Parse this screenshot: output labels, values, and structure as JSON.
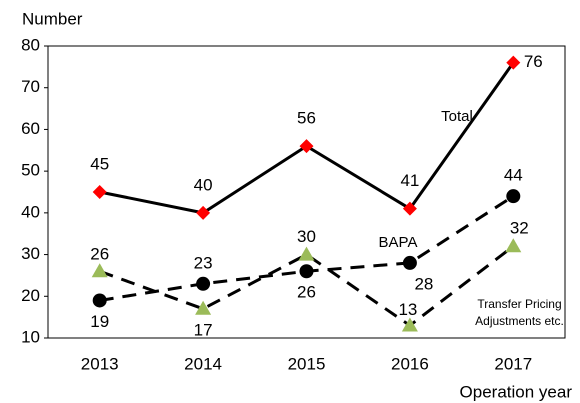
{
  "chart_data": {
    "type": "line",
    "y_label": "Number",
    "x_label": "Operation year",
    "categories": [
      "2013",
      "2014",
      "2015",
      "2016",
      "2017"
    ],
    "series": [
      {
        "name": "Total",
        "color": "#ff0000",
        "line_color": "#000000",
        "dash": false,
        "marker": "diamond",
        "values": [
          45,
          40,
          56,
          41,
          76
        ]
      },
      {
        "name": "BAPA",
        "color": "#000000",
        "line_color": "#000000",
        "dash": true,
        "marker": "circle",
        "values": [
          19,
          23,
          26,
          28,
          44
        ]
      },
      {
        "name": "Transfer Pricing Adjustments etc.",
        "color": "#9bbb59",
        "line_color": "#000000",
        "dash": true,
        "marker": "triangle",
        "values": [
          26,
          17,
          30,
          13,
          32
        ]
      }
    ],
    "ylim": [
      10,
      80
    ],
    "yticks": [
      10,
      20,
      30,
      40,
      50,
      60,
      70,
      80
    ],
    "grid": false
  }
}
